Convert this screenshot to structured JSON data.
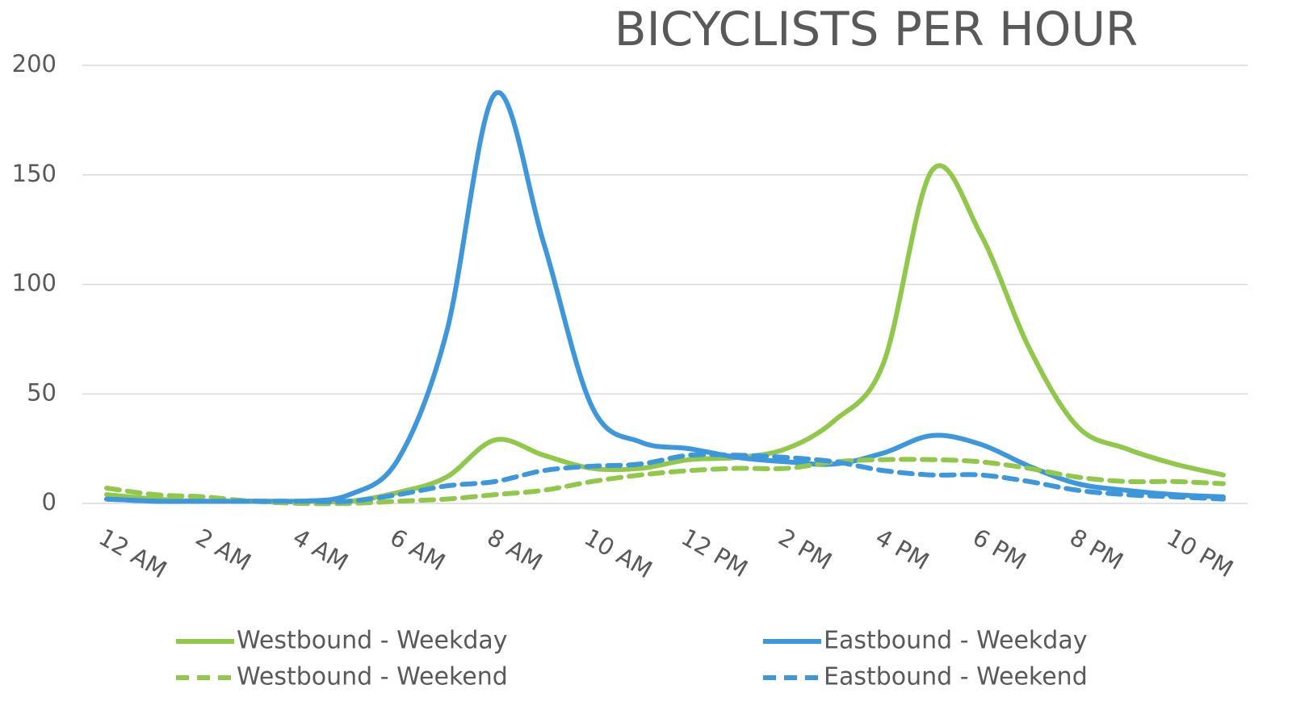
{
  "chart_data": {
    "type": "line",
    "title": "BICYCLISTS PER HOUR",
    "categories": [
      "12 AM",
      null,
      "2 AM",
      null,
      "4 AM",
      null,
      "6 AM",
      null,
      "8 AM",
      null,
      "10 AM",
      null,
      "12 PM",
      null,
      "2 PM",
      null,
      "4 PM",
      null,
      "6 PM",
      null,
      "8 PM",
      null,
      "10 PM",
      null
    ],
    "series": [
      {
        "name": "Westbound - Weekday",
        "color": "#92c84a",
        "dashed": false,
        "values": [
          4,
          2,
          1,
          1,
          1,
          1,
          5,
          12,
          29,
          22,
          16,
          16,
          20,
          21,
          25,
          38,
          64,
          152,
          123,
          71,
          35,
          25,
          18,
          13
        ]
      },
      {
        "name": "Eastbound - Weekday",
        "color": "#3d97dc",
        "dashed": false,
        "values": [
          2,
          1,
          1,
          1,
          1,
          4,
          20,
          78,
          187,
          119,
          44,
          28,
          25,
          21,
          19,
          18,
          23,
          31,
          27,
          17,
          9,
          6,
          4,
          3
        ]
      },
      {
        "name": "Westbound - Weekend",
        "color": "#92c84a",
        "dashed": true,
        "values": [
          7,
          4,
          3,
          1,
          0,
          0,
          1,
          2,
          4,
          6,
          10,
          13,
          15,
          16,
          16,
          19,
          20,
          20,
          19,
          16,
          12,
          10,
          10,
          9
        ]
      },
      {
        "name": "Eastbound - Weekend",
        "color": "#3d97dc",
        "dashed": true,
        "values": [
          2,
          1,
          1,
          1,
          1,
          1,
          4,
          8,
          10,
          15,
          17,
          18,
          22,
          22,
          21,
          19,
          15,
          13,
          13,
          10,
          6,
          4,
          3,
          2
        ]
      }
    ],
    "ylim": [
      0,
      200
    ],
    "yticks": [
      0,
      50,
      100,
      150,
      200
    ],
    "grid": true
  }
}
